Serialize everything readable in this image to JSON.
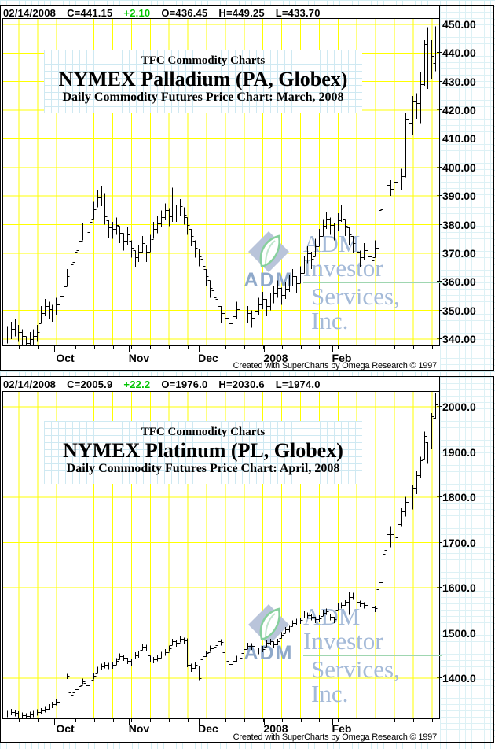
{
  "watermark": {
    "logo_text": "ADM",
    "line1": "ADM Investor",
    "line2": "Services, Inc."
  },
  "colors": {
    "grid_yellow": "#ffff00",
    "change_green": "#00c400",
    "bar_black": "#000000",
    "paper_line_cyan": "#d3eef3",
    "watermark_blue": "#a4bad8",
    "watermark_green": "#9fd6b0"
  },
  "chart_data": [
    {
      "type": "ohlc_bar",
      "header": {
        "date": "02/14/2008",
        "close": "C=441.15",
        "change": "+2.10",
        "open": "O=436.45",
        "high": "H=449.25",
        "low": "L=433.70"
      },
      "supertitle": "TFC Commodity Charts",
      "title": "NYMEX Palladium (PA, Globex)",
      "subtitle": "Daily Commodity Futures Price Chart: March, 2008",
      "credit": "Created with SuperCharts by Omega Research © 1997",
      "x_labels": [
        "Oct",
        "Nov",
        "Dec",
        "2008",
        "Feb"
      ],
      "y_tick_labels": [
        "450.00",
        "440.00",
        "430.00",
        "420.00",
        "410.00",
        "400.00",
        "390.00",
        "380.00",
        "370.00",
        "360.00",
        "350.00",
        "340.00"
      ],
      "ylim": [
        336,
        453.5
      ],
      "grid": true,
      "legend": null,
      "last_bar": {
        "open": 436.45,
        "high": 449.25,
        "low": 433.7,
        "close": 441.15
      },
      "closes": [
        342,
        343.5,
        344.5,
        342.5,
        341,
        338.5,
        340,
        341,
        342.5,
        349,
        351.5,
        350.5,
        349.5,
        352,
        355,
        358.5,
        362,
        366,
        370.5,
        374.5,
        378,
        375.5,
        381,
        385.5,
        389.5,
        391,
        383,
        379,
        378.5,
        380,
        377,
        374.5,
        376.5,
        372,
        368.5,
        370.5,
        373.5,
        370.5,
        374,
        378.5,
        380.5,
        382.5,
        385,
        383,
        387,
        384.5,
        386.5,
        383.5,
        380,
        376,
        372,
        369,
        365.5,
        362,
        358,
        354.5,
        351.5,
        349,
        347.5,
        345.5,
        348,
        350.5,
        348.5,
        351,
        349,
        347.5,
        350,
        352,
        354,
        351.5,
        353.5,
        356,
        358,
        355.5,
        357.5,
        360,
        362,
        359.5,
        363,
        366.5,
        370,
        368,
        372.5,
        376,
        379.5,
        382,
        380,
        378,
        381.5,
        384.5,
        379.5,
        376.5,
        373.5,
        370.5,
        368.5,
        371,
        369,
        367.5,
        372,
        385,
        391,
        394,
        392.5,
        395,
        393.5,
        397,
        417,
        415.5,
        423,
        422.5,
        429,
        443,
        431,
        439,
        441.15
      ],
      "bar_range_default": [
        2.5,
        3.5
      ],
      "bar_range_overrides": {
        "25": [
          393.5,
          386.5
        ],
        "26": [
          391,
          380
        ],
        "44": [
          393,
          381
        ],
        "99": [
          387,
          371.5
        ],
        "100": [
          393,
          385.5
        ],
        "101": [
          396.5,
          389
        ],
        "102": [
          395.5,
          390
        ],
        "103": [
          397,
          391
        ],
        "104": [
          396.5,
          390.5
        ],
        "105": [
          399.5,
          392
        ],
        "106": [
          419,
          396.5
        ],
        "107": [
          419,
          407
        ],
        "108": [
          425,
          411.5
        ],
        "109": [
          426,
          417
        ],
        "110": [
          433.5,
          415.5
        ],
        "111": [
          444.5,
          428.5
        ],
        "112": [
          449,
          427.5
        ],
        "113": [
          444.5,
          431
        ],
        "114": [
          449.25,
          433.7
        ]
      }
    },
    {
      "type": "ohlc_bar",
      "header": {
        "date": "02/14/2008",
        "close": "C=2005.9",
        "change": "+22.2",
        "open": "O=1976.0",
        "high": "H=2030.6",
        "low": "L=1974.0"
      },
      "supertitle": "TFC Commodity Charts",
      "title": "NYMEX Platinum (PL, Globex)",
      "subtitle": "Daily Commodity Futures Price Chart: April, 2008",
      "credit": "Created with SuperCharts by Omega Research © 1997",
      "x_labels": [
        "Oct",
        "Nov",
        "Dec",
        "2008",
        "Feb"
      ],
      "y_tick_labels": [
        "2000.0",
        "1900.0",
        "1800.0",
        "1700.0",
        "1600.0",
        "1500.0",
        "1400.0"
      ],
      "ylim": [
        1310,
        2040
      ],
      "grid": true,
      "legend": null,
      "last_bar": {
        "open": 1976.0,
        "high": 2030.6,
        "low": 1974.0,
        "close": 2005.9
      },
      "closes": [
        1322,
        1326,
        1324,
        1321,
        1318,
        1317,
        1320,
        1322,
        1325,
        1328,
        1332,
        1337,
        1342,
        1348,
        1355,
        1404,
        1406,
        1361,
        1376,
        1383,
        1393,
        1384,
        1380,
        1405,
        1419,
        1426,
        1430,
        1428,
        1429,
        1438,
        1449,
        1446,
        1439,
        1436,
        1451,
        1453,
        1470,
        1468,
        1444,
        1441,
        1445,
        1452,
        1458,
        1466,
        1481,
        1478,
        1487,
        1484,
        1430,
        1422,
        1429,
        1400,
        1449,
        1455,
        1466,
        1470,
        1481,
        1480,
        1452,
        1432,
        1438,
        1444,
        1446,
        1464,
        1472,
        1471,
        1468,
        1461,
        1465,
        1478,
        1481,
        1475,
        1481,
        1496,
        1507,
        1510,
        1522,
        1525,
        1528,
        1542,
        1539,
        1536,
        1530,
        1533,
        1545,
        1548,
        1536,
        1530,
        1559,
        1562,
        1568,
        1580,
        1583,
        1568,
        1565,
        1562,
        1559,
        1557,
        1554,
        1612,
        1675,
        1719,
        1718,
        1688,
        1741,
        1768,
        1790,
        1780,
        1820,
        1849,
        1881,
        1936,
        1910,
        1980,
        2005.9
      ],
      "bar_range_default": [
        6,
        8
      ],
      "bar_range_overrides": {
        "15": [
          1408,
          1394
        ],
        "16": [
          1410,
          1398
        ],
        "17": [
          1368,
          1355
        ],
        "48": [
          1488,
          1424
        ],
        "49": [
          1432,
          1414
        ],
        "51": [
          1428,
          1396
        ],
        "91": [
          1590,
          1540
        ],
        "99": [
          1618,
          1596
        ],
        "100": [
          1682,
          1612
        ],
        "101": [
          1737,
          1684
        ],
        "102": [
          1735,
          1690
        ],
        "103": [
          1722,
          1660
        ],
        "104": [
          1758,
          1712
        ],
        "105": [
          1776,
          1735
        ],
        "106": [
          1801,
          1757
        ],
        "107": [
          1796,
          1754
        ],
        "108": [
          1828,
          1773
        ],
        "109": [
          1857,
          1807
        ],
        "110": [
          1890,
          1842
        ],
        "111": [
          1945,
          1883
        ],
        "112": [
          1922,
          1874
        ],
        "113": [
          1986,
          1906
        ],
        "114": [
          2030.6,
          1974.0
        ]
      }
    }
  ]
}
